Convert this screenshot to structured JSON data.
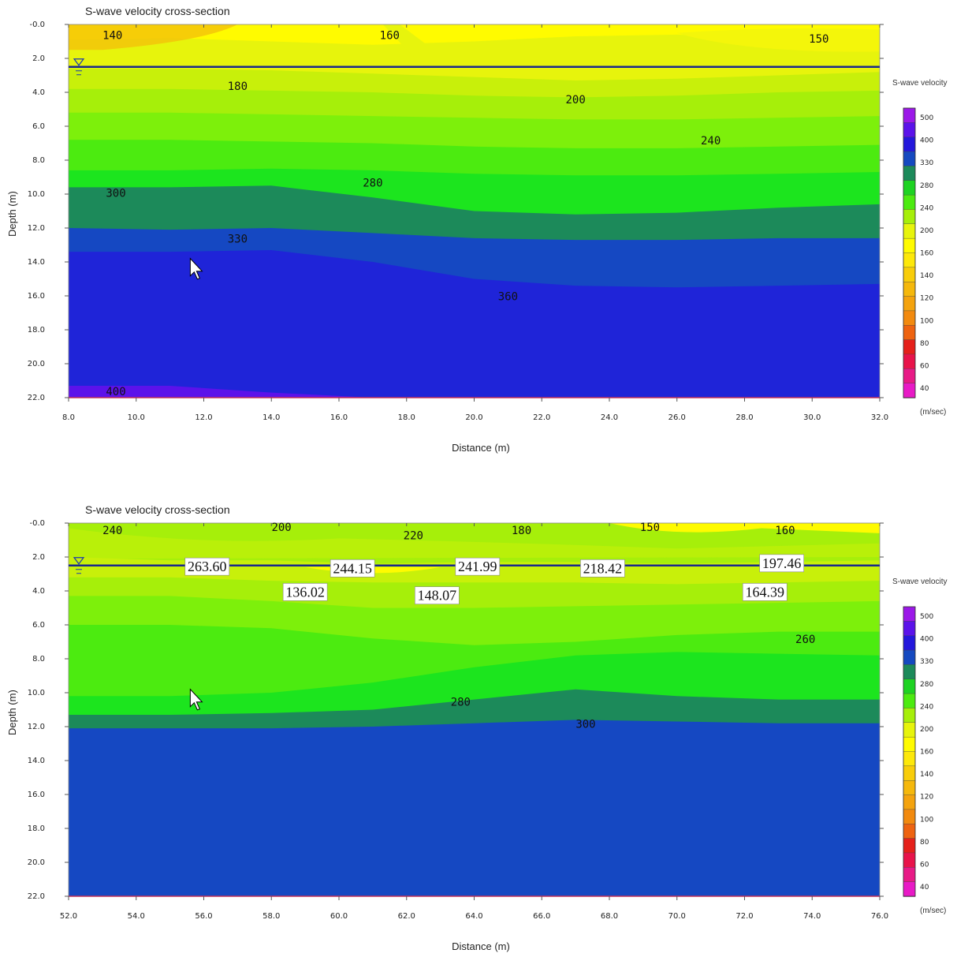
{
  "colors": {
    "c140": "#fffb00",
    "c150": "#f4f60a",
    "c160": "#e7f40c",
    "c180": "#c8f00a",
    "c200": "#a6ef0a",
    "c220": "#7df00b",
    "c240": "#4ceb10",
    "c260": "#1ce51e",
    "c280": "#1c8a5a",
    "c300": "#1548c2",
    "c330": "#1f24d8",
    "c360": "#3414e0",
    "c400": "#5c12ea",
    "orange": "#f4c20a",
    "waterline": "#1a2a8a",
    "frame": "#c0305a"
  },
  "legend": {
    "title": "S-wave velocity",
    "unit": "(m/sec)",
    "labels": [
      "500",
      "400",
      "330",
      "280",
      "240",
      "200",
      "160",
      "140",
      "120",
      "100",
      "80",
      "60",
      "40"
    ],
    "colors": [
      "#9b18e8",
      "#5b12ea",
      "#2417dc",
      "#1549c0",
      "#1c8a5a",
      "#1ed322",
      "#4ceb10",
      "#a6ef0a",
      "#e7f40c",
      "#fffb00",
      "#fde80a",
      "#f8cd0a",
      "#f5b80c",
      "#f4a30e",
      "#f28a0f",
      "#ee6310",
      "#e5201a",
      "#e8134a",
      "#e81a86",
      "#e81ac6"
    ]
  },
  "chart_data": [
    {
      "type": "heatmap",
      "title": "S-wave velocity cross-section",
      "xlabel": "Distance (m)",
      "ylabel": "Depth (m)",
      "xlim": [
        8.0,
        32.0
      ],
      "ylim": [
        0.0,
        22.0
      ],
      "xticks": [
        "8.0",
        "10.0",
        "12.0",
        "14.0",
        "16.0",
        "18.0",
        "20.0",
        "22.0",
        "24.0",
        "26.0",
        "28.0",
        "30.0",
        "32.0"
      ],
      "yticks": [
        "-0.0",
        "2.0",
        "4.0",
        "6.0",
        "8.0",
        "10.0",
        "12.0",
        "14.0",
        "16.0",
        "18.0",
        "20.0",
        "22.0"
      ],
      "water_table_depth": 2.5,
      "contour_labels": [
        {
          "text": "140",
          "x": 9.3,
          "y": 0.3
        },
        {
          "text": "160",
          "x": 17.5,
          "y": 0.3
        },
        {
          "text": "150",
          "x": 30.2,
          "y": 0.5
        },
        {
          "text": "180",
          "x": 13.0,
          "y": 3.3
        },
        {
          "text": "200",
          "x": 23.0,
          "y": 4.1
        },
        {
          "text": "240",
          "x": 27.0,
          "y": 6.5
        },
        {
          "text": "280",
          "x": 17.0,
          "y": 9.0
        },
        {
          "text": "300",
          "x": 9.4,
          "y": 9.6
        },
        {
          "text": "330",
          "x": 13.0,
          "y": 12.3
        },
        {
          "text": "360",
          "x": 21.0,
          "y": 15.7
        },
        {
          "text": "400",
          "x": 9.4,
          "y": 21.3
        }
      ],
      "value_labels": []
    },
    {
      "type": "heatmap",
      "title": "S-wave velocity cross-section",
      "xlabel": "Distance (m)",
      "ylabel": "Depth (m)",
      "xlim": [
        52.0,
        76.0
      ],
      "ylim": [
        0.0,
        22.0
      ],
      "xticks": [
        "52.0",
        "54.0",
        "56.0",
        "58.0",
        "60.0",
        "62.0",
        "64.0",
        "66.0",
        "68.0",
        "70.0",
        "72.0",
        "74.0",
        "76.0"
      ],
      "yticks": [
        "-0.0",
        "2.0",
        "4.0",
        "6.0",
        "8.0",
        "10.0",
        "12.0",
        "14.0",
        "16.0",
        "18.0",
        "20.0",
        "22.0"
      ],
      "water_table_depth": 2.5,
      "contour_labels": [
        {
          "text": "240",
          "x": 53.3,
          "y": 0.1
        },
        {
          "text": "200",
          "x": 58.3,
          "y": -0.1
        },
        {
          "text": "220",
          "x": 62.2,
          "y": 0.4
        },
        {
          "text": "180",
          "x": 65.4,
          "y": 0.1
        },
        {
          "text": "150",
          "x": 69.2,
          "y": -0.1
        },
        {
          "text": "160",
          "x": 73.2,
          "y": 0.1
        },
        {
          "text": "260",
          "x": 73.8,
          "y": 6.5
        },
        {
          "text": "280",
          "x": 63.6,
          "y": 10.2
        },
        {
          "text": "300",
          "x": 67.3,
          "y": 11.5
        }
      ],
      "value_labels": [
        {
          "text": "263.60",
          "x": 56.1,
          "y": 2.1
        },
        {
          "text": "244.15",
          "x": 60.4,
          "y": 2.2
        },
        {
          "text": "241.99",
          "x": 64.1,
          "y": 2.1
        },
        {
          "text": "218.42",
          "x": 67.8,
          "y": 2.2
        },
        {
          "text": "197.46",
          "x": 73.1,
          "y": 1.9
        },
        {
          "text": "136.02",
          "x": 59.0,
          "y": 3.6
        },
        {
          "text": "148.07",
          "x": 62.9,
          "y": 3.8
        },
        {
          "text": "164.39",
          "x": 72.6,
          "y": 3.6
        }
      ]
    }
  ]
}
